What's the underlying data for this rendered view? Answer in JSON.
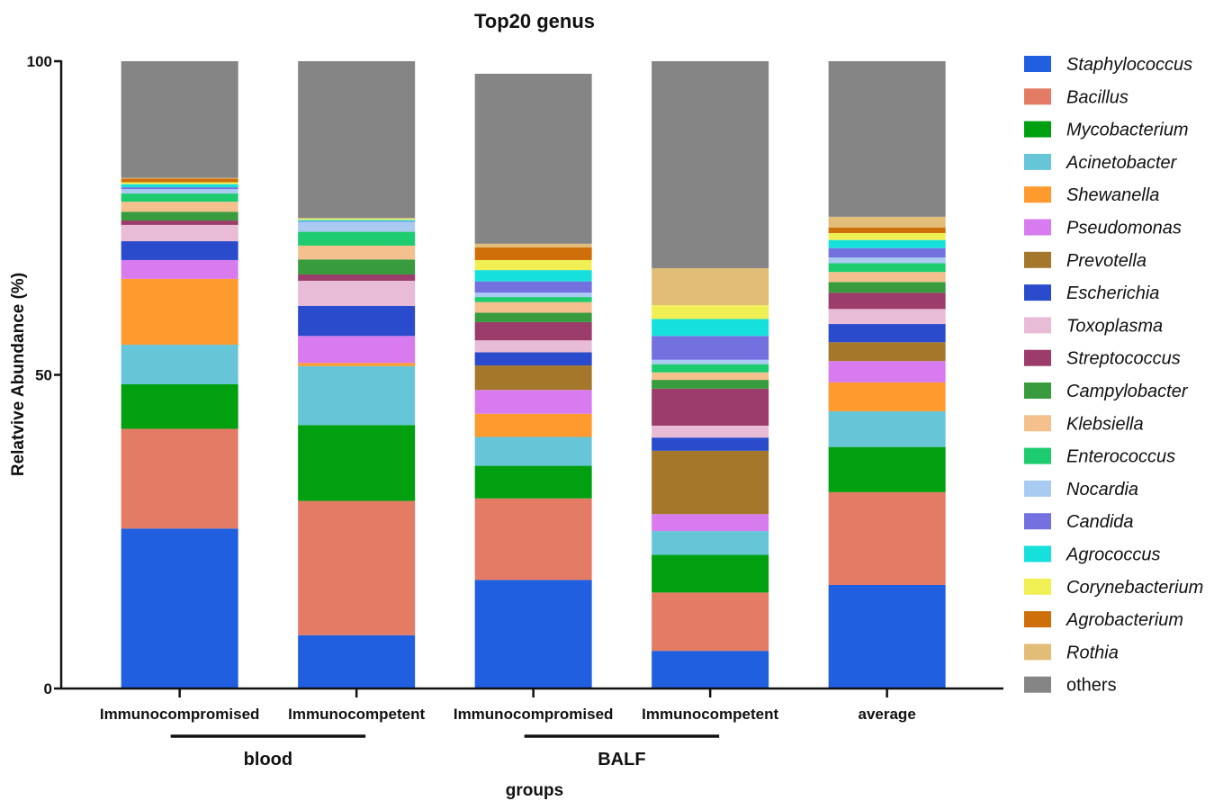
{
  "chart_data": {
    "type": "bar",
    "stacked": true,
    "title": "Top20 genus",
    "xlabel": "groups",
    "ylabel": "Relatvive Abundance (%)",
    "ylim": [
      0,
      100
    ],
    "yticks": [
      "0",
      "50",
      "100"
    ],
    "categories": [
      "Immunocompromised",
      "Immunocompetent",
      "Immunocompromised",
      "Immunocompetent",
      "average"
    ],
    "groups": [
      {
        "label": "blood",
        "categories": [
          0,
          1
        ]
      },
      {
        "label": "BALF",
        "categories": [
          2,
          3
        ]
      }
    ],
    "legend_position": "right",
    "series": [
      {
        "name": "Staphylococcus",
        "color": "#1f5fe0",
        "values": [
          25.5,
          8.5,
          17.3,
          6.0,
          16.5
        ]
      },
      {
        "name": "Bacillus",
        "color": "#e47c65",
        "values": [
          15.9,
          21.4,
          13.0,
          9.3,
          14.8
        ]
      },
      {
        "name": "Mycobacterium",
        "color": "#00a010",
        "values": [
          7.1,
          12.1,
          5.2,
          6.0,
          7.2
        ]
      },
      {
        "name": "Acinetobacter",
        "color": "#66c6d8",
        "values": [
          6.3,
          9.4,
          4.6,
          3.8,
          5.7
        ]
      },
      {
        "name": "Shewanella",
        "color": "#ff9a2e",
        "values": [
          10.5,
          0.5,
          3.7,
          0.0,
          4.6
        ]
      },
      {
        "name": "Pseudomonas",
        "color": "#d77bef",
        "values": [
          3.0,
          4.3,
          3.8,
          2.7,
          3.4
        ]
      },
      {
        "name": "Prevotella",
        "color": "#a5772b",
        "values": [
          0.0,
          0.0,
          3.9,
          10.1,
          3.0
        ]
      },
      {
        "name": "Escherichia",
        "color": "#2a4bcc",
        "values": [
          3.0,
          4.8,
          2.1,
          2.1,
          2.9
        ]
      },
      {
        "name": "Toxoplasma",
        "color": "#e8bbd6",
        "values": [
          2.6,
          4.0,
          1.9,
          1.9,
          2.4
        ]
      },
      {
        "name": "Streptococcus",
        "color": "#9b3c6a",
        "values": [
          0.7,
          1.0,
          2.9,
          5.9,
          2.6
        ]
      },
      {
        "name": "Campylobacter",
        "color": "#389c3f",
        "values": [
          1.4,
          2.4,
          1.5,
          1.4,
          1.7
        ]
      },
      {
        "name": "Klebsiella",
        "color": "#f4c08e",
        "values": [
          1.6,
          2.2,
          1.7,
          1.2,
          1.6
        ]
      },
      {
        "name": "Enterococcus",
        "color": "#1ccc6e",
        "values": [
          1.3,
          2.2,
          0.8,
          1.3,
          1.4
        ]
      },
      {
        "name": "Nocardia",
        "color": "#a9cbf2",
        "values": [
          0.7,
          1.6,
          0.7,
          0.7,
          0.9
        ]
      },
      {
        "name": "Candida",
        "color": "#7371e0",
        "values": [
          0.3,
          0.1,
          1.8,
          3.8,
          1.5
        ]
      },
      {
        "name": "Agrococcus",
        "color": "#16e0db",
        "values": [
          0.5,
          0.2,
          1.8,
          2.7,
          1.3
        ]
      },
      {
        "name": "Corynebacterium",
        "color": "#f0ef54",
        "values": [
          0.3,
          0.2,
          1.6,
          2.2,
          1.1
        ]
      },
      {
        "name": "Agrobacterium",
        "color": "#cf6f09",
        "values": [
          0.6,
          0.0,
          2.0,
          0.0,
          0.9
        ]
      },
      {
        "name": "Rothia",
        "color": "#e2bd78",
        "values": [
          0.1,
          0.1,
          0.6,
          5.9,
          1.7
        ]
      },
      {
        "name": "others",
        "color": "#858585",
        "values": [
          18.6,
          25.0,
          27.1,
          33.0,
          24.8
        ]
      }
    ]
  }
}
